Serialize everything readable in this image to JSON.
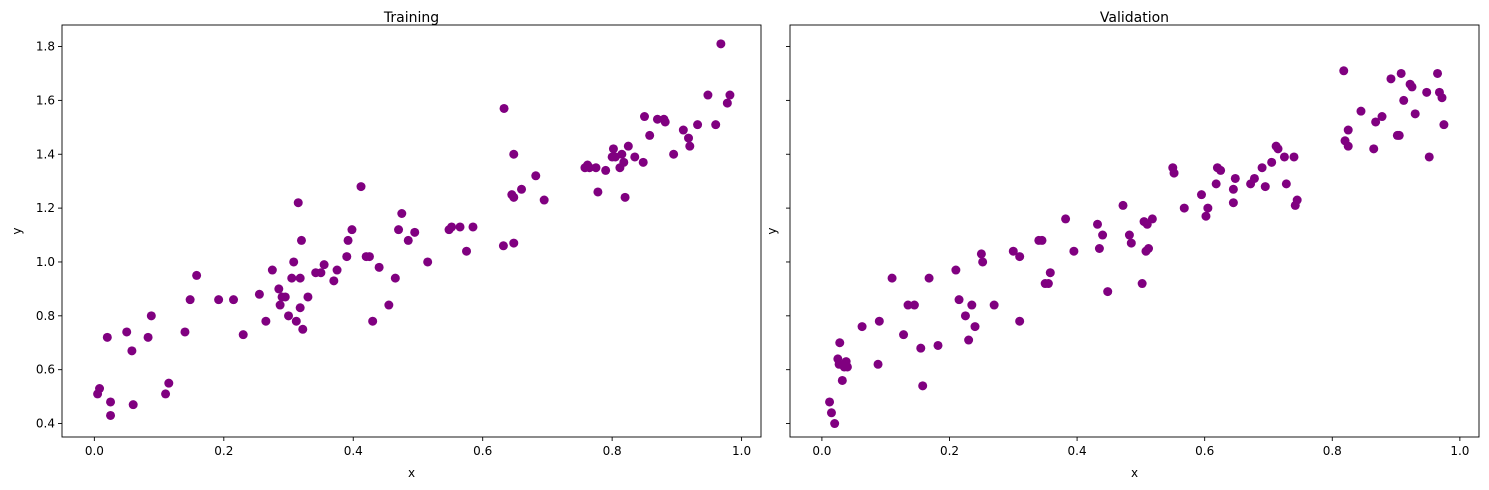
{
  "colors": {
    "points": "#800080",
    "axes": "#000000",
    "background": "#ffffff"
  },
  "chart_data": [
    {
      "type": "scatter",
      "title": "Training",
      "xlabel": "x",
      "ylabel": "y",
      "xlim": [
        -0.05,
        1.03
      ],
      "ylim": [
        0.35,
        1.88
      ],
      "xticks": [
        0.0,
        0.2,
        0.4,
        0.6,
        0.8,
        1.0
      ],
      "xtick_labels": [
        "0.0",
        "0.2",
        "0.4",
        "0.6",
        "0.8",
        "1.0"
      ],
      "yticks": [
        0.4,
        0.6,
        0.8,
        1.0,
        1.2,
        1.4,
        1.6,
        1.8
      ],
      "ytick_labels": [
        "0.4",
        "0.6",
        "0.8",
        "1.0",
        "1.2",
        "1.4",
        "1.6",
        "1.8"
      ],
      "grid": false,
      "series": [
        {
          "color": "#800080",
          "points": [
            [
              0.005,
              0.51
            ],
            [
              0.008,
              0.53
            ],
            [
              0.02,
              0.72
            ],
            [
              0.025,
              0.48
            ],
            [
              0.025,
              0.43
            ],
            [
              0.05,
              0.74
            ],
            [
              0.058,
              0.67
            ],
            [
              0.06,
              0.47
            ],
            [
              0.083,
              0.72
            ],
            [
              0.088,
              0.8
            ],
            [
              0.11,
              0.51
            ],
            [
              0.115,
              0.55
            ],
            [
              0.14,
              0.74
            ],
            [
              0.148,
              0.86
            ],
            [
              0.158,
              0.95
            ],
            [
              0.192,
              0.86
            ],
            [
              0.215,
              0.86
            ],
            [
              0.23,
              0.73
            ],
            [
              0.255,
              0.88
            ],
            [
              0.265,
              0.78
            ],
            [
              0.275,
              0.97
            ],
            [
              0.285,
              0.9
            ],
            [
              0.287,
              0.84
            ],
            [
              0.29,
              0.87
            ],
            [
              0.295,
              0.87
            ],
            [
              0.3,
              0.8
            ],
            [
              0.305,
              0.94
            ],
            [
              0.308,
              1.0
            ],
            [
              0.312,
              0.78
            ],
            [
              0.315,
              1.22
            ],
            [
              0.318,
              0.94
            ],
            [
              0.318,
              0.83
            ],
            [
              0.32,
              1.08
            ],
            [
              0.322,
              0.75
            ],
            [
              0.33,
              0.87
            ],
            [
              0.342,
              0.96
            ],
            [
              0.35,
              0.96
            ],
            [
              0.355,
              0.99
            ],
            [
              0.37,
              0.93
            ],
            [
              0.375,
              0.97
            ],
            [
              0.39,
              1.02
            ],
            [
              0.392,
              1.08
            ],
            [
              0.398,
              1.12
            ],
            [
              0.412,
              1.28
            ],
            [
              0.42,
              1.02
            ],
            [
              0.425,
              1.02
            ],
            [
              0.43,
              0.78
            ],
            [
              0.44,
              0.98
            ],
            [
              0.455,
              0.84
            ],
            [
              0.465,
              0.94
            ],
            [
              0.47,
              1.12
            ],
            [
              0.475,
              1.18
            ],
            [
              0.485,
              1.08
            ],
            [
              0.495,
              1.11
            ],
            [
              0.515,
              1.0
            ],
            [
              0.548,
              1.12
            ],
            [
              0.552,
              1.13
            ],
            [
              0.565,
              1.13
            ],
            [
              0.575,
              1.04
            ],
            [
              0.585,
              1.13
            ],
            [
              0.632,
              1.06
            ],
            [
              0.633,
              1.57
            ],
            [
              0.645,
              1.25
            ],
            [
              0.648,
              1.4
            ],
            [
              0.648,
              1.24
            ],
            [
              0.648,
              1.07
            ],
            [
              0.66,
              1.27
            ],
            [
              0.682,
              1.32
            ],
            [
              0.695,
              1.23
            ],
            [
              0.758,
              1.35
            ],
            [
              0.762,
              1.36
            ],
            [
              0.765,
              1.35
            ],
            [
              0.775,
              1.35
            ],
            [
              0.778,
              1.26
            ],
            [
              0.79,
              1.34
            ],
            [
              0.8,
              1.39
            ],
            [
              0.802,
              1.42
            ],
            [
              0.805,
              1.39
            ],
            [
              0.812,
              1.35
            ],
            [
              0.815,
              1.4
            ],
            [
              0.818,
              1.37
            ],
            [
              0.82,
              1.24
            ],
            [
              0.825,
              1.43
            ],
            [
              0.835,
              1.39
            ],
            [
              0.848,
              1.37
            ],
            [
              0.85,
              1.54
            ],
            [
              0.858,
              1.47
            ],
            [
              0.87,
              1.53
            ],
            [
              0.88,
              1.53
            ],
            [
              0.882,
              1.52
            ],
            [
              0.895,
              1.4
            ],
            [
              0.91,
              1.49
            ],
            [
              0.918,
              1.46
            ],
            [
              0.92,
              1.43
            ],
            [
              0.932,
              1.51
            ],
            [
              0.948,
              1.62
            ],
            [
              0.96,
              1.51
            ],
            [
              0.968,
              1.81
            ],
            [
              0.978,
              1.59
            ],
            [
              0.982,
              1.62
            ]
          ]
        }
      ]
    },
    {
      "type": "scatter",
      "title": "Validation",
      "xlabel": "x",
      "ylabel": "y",
      "xlim": [
        -0.05,
        1.03
      ],
      "ylim": [
        0.35,
        1.88
      ],
      "xticks": [
        0.0,
        0.2,
        0.4,
        0.6,
        0.8,
        1.0
      ],
      "xtick_labels": [
        "0.0",
        "0.2",
        "0.4",
        "0.6",
        "0.8",
        "1.0"
      ],
      "yticks": [
        0.4,
        0.6,
        0.8,
        1.0,
        1.2,
        1.4,
        1.6,
        1.8
      ],
      "ytick_labels": [
        "",
        "",
        "",
        "",
        "",
        "",
        "",
        ""
      ],
      "grid": false,
      "series": [
        {
          "color": "#800080",
          "points": [
            [
              0.012,
              0.48
            ],
            [
              0.015,
              0.44
            ],
            [
              0.02,
              0.4
            ],
            [
              0.025,
              0.64
            ],
            [
              0.027,
              0.62
            ],
            [
              0.028,
              0.7
            ],
            [
              0.032,
              0.56
            ],
            [
              0.035,
              0.61
            ],
            [
              0.038,
              0.63
            ],
            [
              0.04,
              0.61
            ],
            [
              0.063,
              0.76
            ],
            [
              0.088,
              0.62
            ],
            [
              0.09,
              0.78
            ],
            [
              0.11,
              0.94
            ],
            [
              0.128,
              0.73
            ],
            [
              0.135,
              0.84
            ],
            [
              0.145,
              0.84
            ],
            [
              0.155,
              0.68
            ],
            [
              0.158,
              0.54
            ],
            [
              0.168,
              0.94
            ],
            [
              0.182,
              0.69
            ],
            [
              0.21,
              0.97
            ],
            [
              0.215,
              0.86
            ],
            [
              0.225,
              0.8
            ],
            [
              0.23,
              0.71
            ],
            [
              0.235,
              0.84
            ],
            [
              0.24,
              0.76
            ],
            [
              0.25,
              1.03
            ],
            [
              0.252,
              1.0
            ],
            [
              0.27,
              0.84
            ],
            [
              0.3,
              1.04
            ],
            [
              0.31,
              0.78
            ],
            [
              0.31,
              1.02
            ],
            [
              0.34,
              1.08
            ],
            [
              0.345,
              1.08
            ],
            [
              0.35,
              0.92
            ],
            [
              0.355,
              0.92
            ],
            [
              0.358,
              0.96
            ],
            [
              0.382,
              1.16
            ],
            [
              0.395,
              1.04
            ],
            [
              0.432,
              1.14
            ],
            [
              0.435,
              1.05
            ],
            [
              0.44,
              1.1
            ],
            [
              0.448,
              0.89
            ],
            [
              0.472,
              1.21
            ],
            [
              0.482,
              1.1
            ],
            [
              0.485,
              1.07
            ],
            [
              0.502,
              0.92
            ],
            [
              0.505,
              1.15
            ],
            [
              0.508,
              1.04
            ],
            [
              0.51,
              1.14
            ],
            [
              0.512,
              1.05
            ],
            [
              0.518,
              1.16
            ],
            [
              0.55,
              1.35
            ],
            [
              0.552,
              1.33
            ],
            [
              0.568,
              1.2
            ],
            [
              0.595,
              1.25
            ],
            [
              0.602,
              1.17
            ],
            [
              0.605,
              1.2
            ],
            [
              0.618,
              1.29
            ],
            [
              0.62,
              1.35
            ],
            [
              0.625,
              1.34
            ],
            [
              0.645,
              1.22
            ],
            [
              0.645,
              1.27
            ],
            [
              0.648,
              1.31
            ],
            [
              0.672,
              1.29
            ],
            [
              0.678,
              1.31
            ],
            [
              0.69,
              1.35
            ],
            [
              0.695,
              1.28
            ],
            [
              0.705,
              1.37
            ],
            [
              0.712,
              1.43
            ],
            [
              0.715,
              1.42
            ],
            [
              0.725,
              1.39
            ],
            [
              0.728,
              1.29
            ],
            [
              0.74,
              1.39
            ],
            [
              0.742,
              1.21
            ],
            [
              0.745,
              1.23
            ],
            [
              0.818,
              1.71
            ],
            [
              0.82,
              1.45
            ],
            [
              0.825,
              1.49
            ],
            [
              0.825,
              1.43
            ],
            [
              0.845,
              1.56
            ],
            [
              0.865,
              1.42
            ],
            [
              0.868,
              1.52
            ],
            [
              0.878,
              1.54
            ],
            [
              0.892,
              1.68
            ],
            [
              0.902,
              1.47
            ],
            [
              0.905,
              1.47
            ],
            [
              0.908,
              1.7
            ],
            [
              0.912,
              1.6
            ],
            [
              0.922,
              1.66
            ],
            [
              0.925,
              1.65
            ],
            [
              0.93,
              1.55
            ],
            [
              0.948,
              1.63
            ],
            [
              0.952,
              1.39
            ],
            [
              0.965,
              1.7
            ],
            [
              0.968,
              1.63
            ],
            [
              0.972,
              1.61
            ],
            [
              0.975,
              1.51
            ]
          ]
        }
      ]
    }
  ]
}
